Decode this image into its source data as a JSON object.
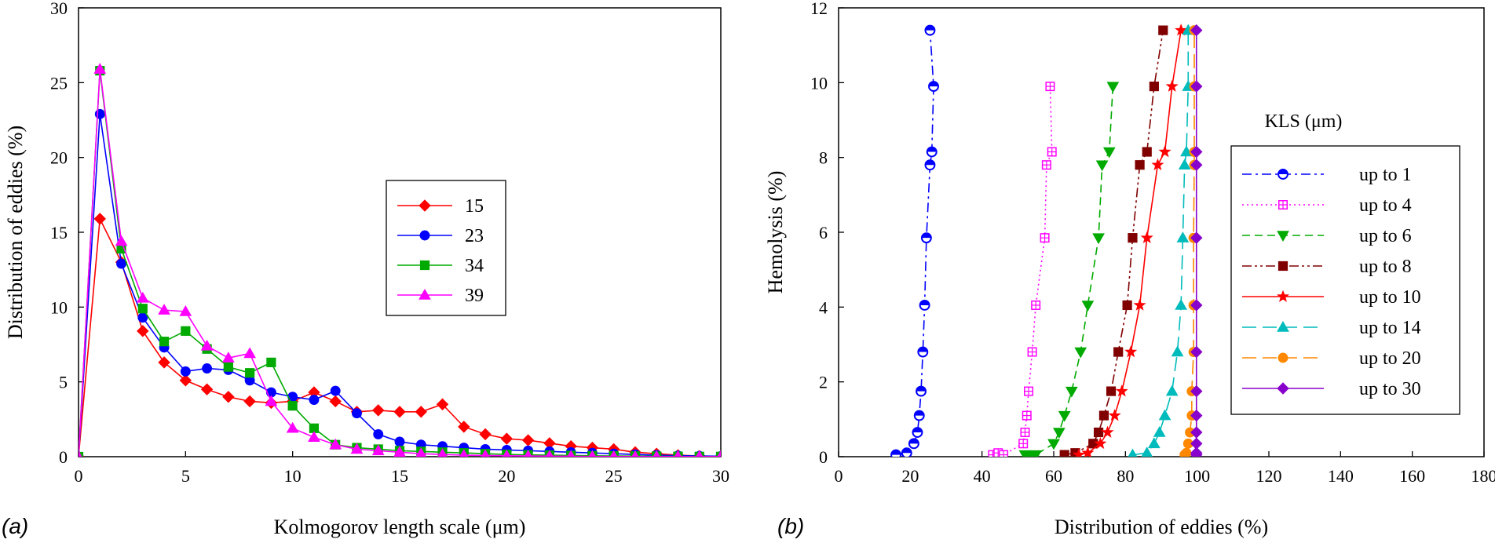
{
  "chart_data": [
    {
      "type": "line",
      "panel_label": "(a)",
      "xlabel": "Kolmogorov length scale (μm)",
      "ylabel": "Distribution of eddies (%)",
      "xlim": [
        0,
        30
      ],
      "ylim": [
        0,
        30
      ],
      "xticks": [
        "0",
        "5",
        "10",
        "15",
        "20",
        "25",
        "30"
      ],
      "yticks": [
        "0",
        "5",
        "10",
        "15",
        "20",
        "25",
        "30"
      ],
      "legend_title": "",
      "legend_position": "center-right",
      "series": [
        {
          "name": "15",
          "color": "#ff0000",
          "marker": "diamond",
          "dash": "solid",
          "x": [
            0,
            1,
            2,
            3,
            4,
            5,
            6,
            7,
            8,
            9,
            10,
            11,
            12,
            13,
            14,
            15,
            16,
            17,
            18,
            19,
            20,
            21,
            22,
            23,
            24,
            25,
            26,
            27,
            28,
            29,
            30
          ],
          "y": [
            0,
            15.9,
            13,
            8.4,
            6.3,
            5.1,
            4.5,
            4.0,
            3.7,
            3.6,
            3.7,
            4.3,
            3.7,
            3.0,
            3.1,
            3.0,
            3.0,
            3.5,
            2.0,
            1.5,
            1.2,
            1.1,
            0.9,
            0.7,
            0.6,
            0.5,
            0.3,
            0.2,
            0.1,
            0.05,
            0.02
          ]
        },
        {
          "name": "23",
          "color": "#0000ff",
          "marker": "circle",
          "dash": "solid",
          "x": [
            0,
            1,
            2,
            3,
            4,
            5,
            6,
            7,
            8,
            9,
            10,
            11,
            12,
            13,
            14,
            15,
            16,
            17,
            18,
            19,
            20,
            21,
            22,
            23,
            24,
            25,
            26,
            27,
            28,
            29,
            30
          ],
          "y": [
            0,
            22.9,
            12.9,
            9.3,
            7.3,
            5.7,
            5.9,
            5.8,
            5.1,
            4.3,
            4.0,
            3.8,
            4.4,
            2.9,
            1.5,
            1.0,
            0.8,
            0.7,
            0.6,
            0.5,
            0.45,
            0.4,
            0.35,
            0.3,
            0.25,
            0.2,
            0.15,
            0.1,
            0.07,
            0.05,
            0.03
          ]
        },
        {
          "name": "34",
          "color": "#00aa00",
          "marker": "square",
          "dash": "solid",
          "x": [
            0,
            1,
            2,
            3,
            4,
            5,
            6,
            7,
            8,
            9,
            10,
            11,
            12,
            13,
            14,
            15,
            16,
            17,
            18,
            19,
            20,
            21,
            22,
            23,
            24,
            25,
            26,
            27,
            28,
            29,
            30
          ],
          "y": [
            0,
            25.8,
            13.9,
            9.9,
            7.7,
            8.4,
            7.2,
            6.0,
            5.6,
            6.3,
            3.4,
            1.9,
            0.8,
            0.6,
            0.5,
            0.4,
            0.35,
            0.3,
            0.25,
            0.2,
            0.15,
            0.12,
            0.1,
            0.08,
            0.06,
            0.05,
            0.04,
            0.03,
            0.02,
            0.01,
            0.01
          ]
        },
        {
          "name": "39",
          "color": "#ff00ff",
          "marker": "triangle",
          "dash": "solid",
          "x": [
            0,
            1,
            2,
            3,
            4,
            5,
            6,
            7,
            8,
            9,
            10,
            11,
            12,
            13,
            14,
            15,
            16,
            17,
            18,
            19,
            20,
            21,
            22,
            23,
            24,
            25,
            26,
            27,
            28,
            29,
            30
          ],
          "y": [
            0,
            25.9,
            14.4,
            10.6,
            9.8,
            9.7,
            7.4,
            6.6,
            6.9,
            3.7,
            1.9,
            1.3,
            0.8,
            0.5,
            0.4,
            0.3,
            0.2,
            0.15,
            0.1,
            0.08,
            0.06,
            0.05,
            0.04,
            0.03,
            0.02,
            0.02,
            0.01,
            0.01,
            0.01,
            0.01,
            0.01
          ]
        }
      ]
    },
    {
      "type": "line",
      "panel_label": "(b)",
      "xlabel": "Distribution of eddies (%)",
      "ylabel": "Hemolysis (%)",
      "xlim": [
        0,
        180
      ],
      "ylim": [
        0,
        12
      ],
      "xticks": [
        "0",
        "20",
        "40",
        "60",
        "80",
        "100",
        "120",
        "140",
        "160",
        "180"
      ],
      "yticks": [
        "0",
        "2",
        "4",
        "6",
        "8",
        "10",
        "12"
      ],
      "legend_title": "KLS (μm)",
      "legend_position": "right",
      "series": [
        {
          "name": "up to 1",
          "color": "#0000ff",
          "marker": "circle-half",
          "dash": "dashdot",
          "x": [
            16,
            19,
            21,
            22,
            22.5,
            23,
            23.5,
            24,
            24.5,
            25.5,
            26,
            26.5,
            25.5
          ],
          "y": [
            0.05,
            0.1,
            0.35,
            0.65,
            1.1,
            1.75,
            2.8,
            4.05,
            5.85,
            7.8,
            8.15,
            9.9,
            11.4
          ]
        },
        {
          "name": "up to 4",
          "color": "#ff00ff",
          "marker": "square-cross",
          "dash": "dotted",
          "x": [
            43,
            44.5,
            46,
            51.5,
            52,
            52.5,
            53,
            54,
            55,
            57.5,
            58,
            59.5,
            59
          ],
          "y": [
            0.05,
            0.1,
            0.05,
            0.35,
            0.65,
            1.1,
            1.75,
            2.8,
            4.05,
            5.85,
            7.8,
            8.15,
            9.9
          ]
        },
        {
          "name": "up to 6",
          "color": "#00aa00",
          "marker": "triangle-down",
          "dash": "dashed",
          "x": [
            52,
            53.5,
            55,
            60,
            61.5,
            63,
            65,
            67.5,
            69.5,
            72.5,
            73.5,
            75.5,
            76.5
          ],
          "y": [
            0.05,
            0.02,
            0.05,
            0.35,
            0.65,
            1.1,
            1.75,
            2.8,
            4.05,
            5.85,
            7.8,
            8.15,
            9.9
          ]
        },
        {
          "name": "up to 8",
          "color": "#800000",
          "marker": "square",
          "dash": "dashdotdot",
          "x": [
            63,
            66,
            71,
            72.5,
            74,
            76,
            78,
            80.5,
            82,
            84,
            86,
            88,
            90.5
          ],
          "y": [
            0.05,
            0.1,
            0.35,
            0.65,
            1.1,
            1.75,
            2.8,
            4.05,
            5.85,
            7.8,
            8.15,
            9.9,
            11.4
          ]
        },
        {
          "name": "up to 10",
          "color": "#ff0000",
          "marker": "star",
          "dash": "solid",
          "x": [
            67,
            69.5,
            73,
            75,
            77,
            79,
            81.5,
            84,
            86,
            89,
            91,
            93,
            95.5
          ],
          "y": [
            0.05,
            0.1,
            0.35,
            0.65,
            1.1,
            1.75,
            2.8,
            4.05,
            5.85,
            7.8,
            8.15,
            9.9,
            11.4
          ]
        },
        {
          "name": "up to 14",
          "color": "#00bbbb",
          "marker": "triangle",
          "dash": "longdash",
          "x": [
            82,
            86,
            88,
            89.5,
            91,
            93,
            94.5,
            95.5,
            96,
            96.5,
            97,
            97.5,
            97.5
          ],
          "y": [
            0.05,
            0.1,
            0.35,
            0.65,
            1.1,
            1.75,
            2.8,
            4.05,
            5.85,
            7.8,
            8.15,
            9.9,
            11.4
          ]
        },
        {
          "name": "up to 20",
          "color": "#ff8800",
          "marker": "circle",
          "dash": "longdash",
          "x": [
            96.5,
            97,
            97.5,
            98,
            98.5,
            98.5,
            99,
            99,
            99,
            99.2,
            99.2,
            99.2,
            99.2
          ],
          "y": [
            0.05,
            0.1,
            0.35,
            0.65,
            1.1,
            1.75,
            2.8,
            4.05,
            5.85,
            7.8,
            8.15,
            9.9,
            11.4
          ]
        },
        {
          "name": "up to 30",
          "color": "#8800cc",
          "marker": "diamond",
          "dash": "solid",
          "x": [
            99.8,
            99.8,
            99.8,
            99.8,
            99.8,
            99.8,
            99.8,
            99.8,
            99.8,
            99.8,
            99.8,
            99.8,
            99.8
          ],
          "y": [
            0.05,
            0.1,
            0.35,
            0.65,
            1.1,
            1.75,
            2.8,
            4.05,
            5.85,
            7.8,
            8.15,
            9.9,
            11.4
          ]
        }
      ]
    }
  ]
}
